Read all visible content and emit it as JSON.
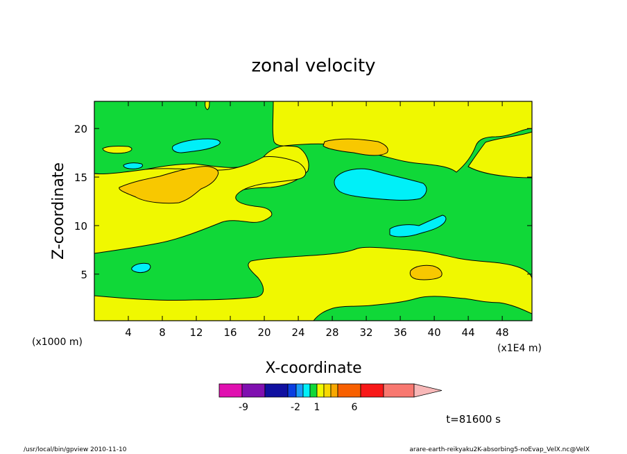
{
  "chart_data": {
    "type": "heatmap",
    "title": "zonal velocity",
    "xlabel": "X-coordinate",
    "ylabel": "Z-coordinate",
    "x_unit_left": "(x1000 m)",
    "x_unit_right": "(x1E4 m)",
    "xlim": [
      0,
      51.5
    ],
    "ylim": [
      0.2,
      22.8
    ],
    "x_ticks": [
      4,
      8,
      12,
      16,
      20,
      24,
      28,
      32,
      36,
      40,
      44,
      48
    ],
    "y_ticks": [
      5,
      10,
      15,
      20
    ],
    "colorbar": {
      "labels": [
        {
          "text": "-9",
          "value": -9
        },
        {
          "text": "-2",
          "value": -2
        },
        {
          "text": "1",
          "value": 1
        },
        {
          "text": "6",
          "value": 6
        }
      ],
      "colors": [
        "#e010b0",
        "#8010b0",
        "#1010a0",
        "#0a3ee0",
        "#1a9cf8",
        "#00f0f8",
        "#10d838",
        "#f0f800",
        "#f8d800",
        "#f8a800",
        "#f86000",
        "#f81818",
        "#f87870",
        "#f8b8b8"
      ]
    },
    "region_colors": {
      "green": "#10d838",
      "yellow": "#f0f800",
      "orange": "#f8c800",
      "cyan": "#00f0f8"
    },
    "timestamp": "t=81600 s"
  },
  "footer": {
    "left": "/usr/local/bin/gpview  2010-11-10",
    "right": "arare-earth-reikyaku2K-absorbing5-noEvap_VelX.nc@VelX"
  }
}
